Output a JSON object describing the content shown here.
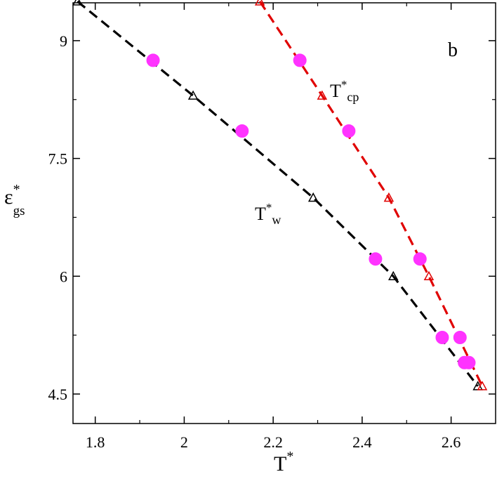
{
  "chart_data": {
    "type": "line",
    "panel_label": "b",
    "xlabel": {
      "base": "T",
      "sup": "*"
    },
    "ylabel": {
      "base": "ε",
      "sup": "*",
      "sub": "gs"
    },
    "xlim": [
      1.75,
      2.7
    ],
    "ylim": [
      4.5,
      9.5
    ],
    "xticks": [
      1.8,
      2.0,
      2.2,
      2.4,
      2.6
    ],
    "xtick_labels": [
      "1.8",
      "2",
      "2.2",
      "2.4",
      "2.6"
    ],
    "yticks": [
      4.5,
      6.0,
      7.5,
      9.0
    ],
    "ytick_labels": [
      "4.5",
      "6",
      "7.5",
      "9"
    ],
    "grid": false,
    "series": [
      {
        "name": "T*w",
        "label_base": "T",
        "label_sup": "*",
        "label_sub": "w",
        "color": "#000000",
        "marker": "triangle",
        "x": [
          1.76,
          2.02,
          2.29,
          2.47,
          2.66
        ],
        "y": [
          9.5,
          8.3,
          7.0,
          6.0,
          4.6
        ]
      },
      {
        "name": "T*cp",
        "label_base": "T",
        "label_sup": "*",
        "label_sub": "cp",
        "color": "#e00000",
        "marker": "triangle",
        "x": [
          2.17,
          2.31,
          2.46,
          2.55,
          2.67
        ],
        "y": [
          9.5,
          8.3,
          7.0,
          6.0,
          4.6
        ]
      },
      {
        "name": "points",
        "color": "#ff33ff",
        "marker": "circle",
        "x": [
          1.93,
          2.13,
          2.43,
          2.64,
          2.26,
          2.37,
          2.53,
          2.58,
          2.62,
          2.63
        ],
        "y": [
          8.75,
          7.85,
          6.22,
          4.9,
          8.75,
          7.85,
          6.22,
          5.22,
          5.22,
          4.9
        ]
      }
    ]
  }
}
